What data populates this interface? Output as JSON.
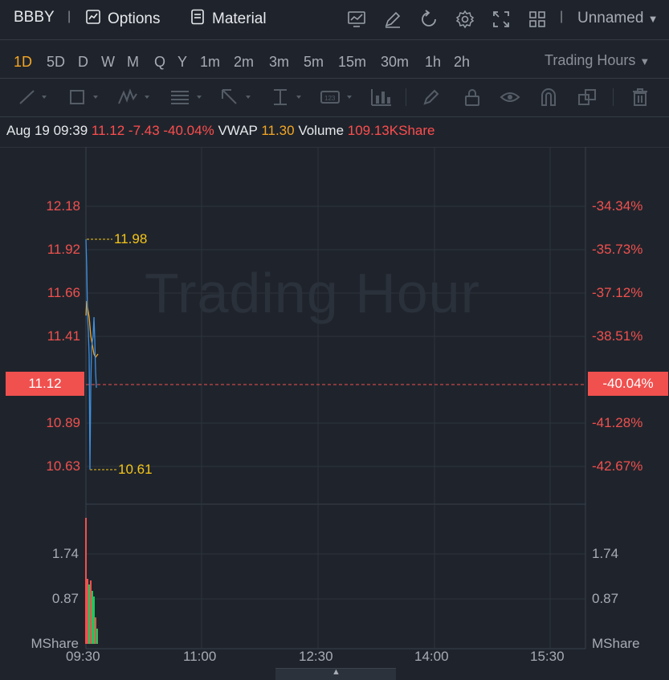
{
  "header": {
    "ticker": "BBBY",
    "options_label": "Options",
    "material_label": "Material",
    "layout_name": "Unnamed",
    "icons": [
      "chart-indicator-icon",
      "draw-pen-icon",
      "refresh-icon",
      "settings-gear-icon",
      "fullscreen-icon",
      "grid-layout-icon"
    ]
  },
  "periods": [
    "1D",
    "5D",
    "D",
    "W",
    "M",
    "Q",
    "Y",
    "1m",
    "2m",
    "3m",
    "5m",
    "15m",
    "30m",
    "1h",
    "2h"
  ],
  "active_period": "1D",
  "session_select": "Trading Hours",
  "quote": {
    "datetime": "Aug 19 09:39",
    "price": "11.12",
    "change": "-7.43",
    "change_pct": "-40.04%",
    "vwap_label": "VWAP",
    "vwap": "11.30",
    "volume_label": "Volume",
    "volume": "109.13KShare"
  },
  "watermark": "Trading Hour",
  "price_axis": [
    "12.18",
    "11.92",
    "11.66",
    "11.41",
    "11.12",
    "10.89",
    "10.63"
  ],
  "pct_axis": [
    "-34.34%",
    "-35.73%",
    "-37.12%",
    "-38.51%",
    "-40.04%",
    "-41.28%",
    "-42.67%"
  ],
  "current_price_tag": "11.12",
  "current_pct_tag": "-40.04%",
  "high_label": "11.98",
  "low_label": "10.61",
  "volume_axis_left": [
    "1.74",
    "0.87",
    "MShare"
  ],
  "volume_axis_right": [
    "1.74",
    "0.87",
    "MShare"
  ],
  "time_axis": [
    "09:30",
    "11:00",
    "12:30",
    "14:00",
    "15:30"
  ],
  "colors": {
    "up": "#f0504e",
    "down": "#22c55e",
    "price_line": "#3d8fe0",
    "vwap_line": "#f5a623",
    "accent": "#f5a623"
  }
}
